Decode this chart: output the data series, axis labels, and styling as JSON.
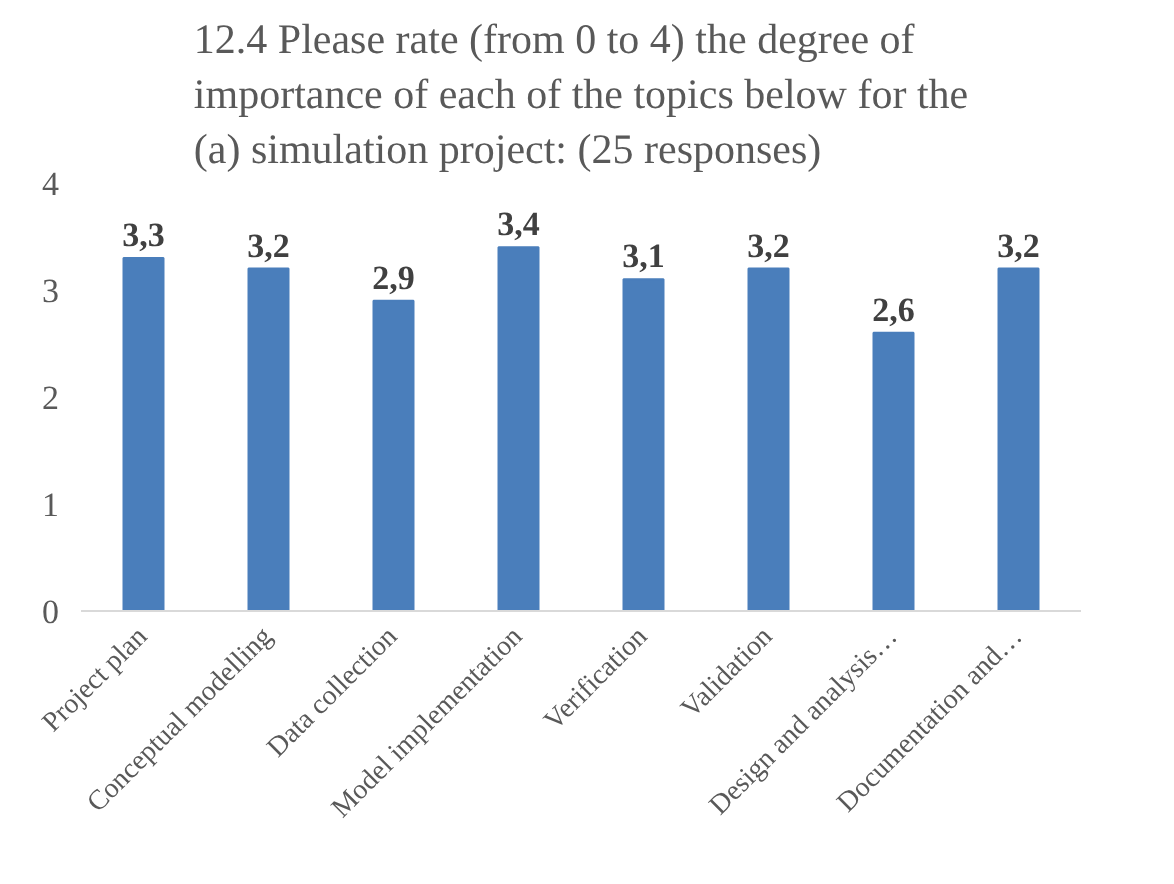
{
  "chart_data": {
    "type": "bar",
    "title": "12.4 Please rate (from 0 to 4) the degree of\nimportance of each of the topics below for the\n(a) simulation project: (25 responses)",
    "categories": [
      "Project plan",
      "Conceptual modelling",
      "Data collection",
      "Model implementation",
      "Verification",
      "Validation",
      "Design and analysis…",
      "Documentation and…"
    ],
    "values": [
      3.3,
      3.2,
      2.9,
      3.4,
      3.1,
      3.2,
      2.6,
      3.2
    ],
    "value_labels": [
      "3,3",
      "3,2",
      "2,9",
      "3,4",
      "3,1",
      "3,2",
      "2,6",
      "3,2"
    ],
    "color": "#4a7ebb",
    "ylim": [
      0,
      4
    ],
    "yticks": [
      0,
      1,
      2,
      3,
      4
    ],
    "grid": false
  }
}
